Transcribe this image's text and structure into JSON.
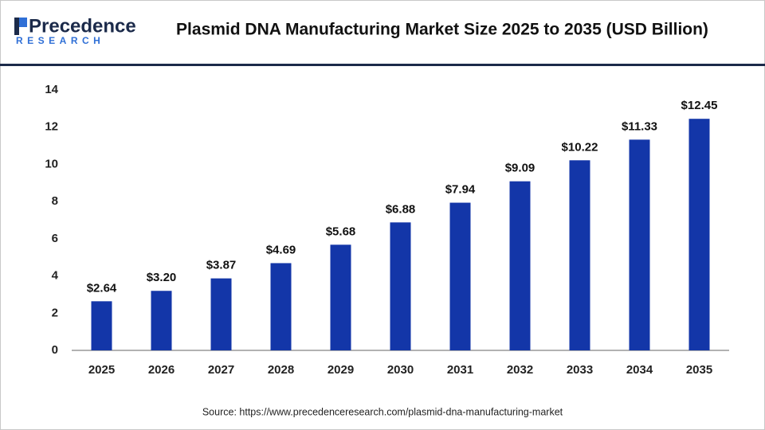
{
  "header": {
    "logo_name": "Precedence",
    "logo_sub": "RESEARCH"
  },
  "chart_data": {
    "type": "bar",
    "title": "Plasmid DNA Manufacturing Market Size 2025 to 2035 (USD Billion)",
    "categories": [
      "2025",
      "2026",
      "2027",
      "2028",
      "2029",
      "2030",
      "2031",
      "2032",
      "2033",
      "2034",
      "2035"
    ],
    "values": [
      2.64,
      3.2,
      3.87,
      4.69,
      5.68,
      6.88,
      7.94,
      9.09,
      10.22,
      11.33,
      12.45
    ],
    "value_labels": [
      "$2.64",
      "$3.20",
      "$3.87",
      "$4.69",
      "$5.68",
      "$6.88",
      "$7.94",
      "$9.09",
      "$10.22",
      "$11.33",
      "$12.45"
    ],
    "color": "#1336a8",
    "ylim": [
      0,
      14
    ],
    "yticks": [
      0,
      2,
      4,
      6,
      8,
      10,
      12,
      14
    ],
    "grid": false,
    "source": "Source: https://www.precedenceresearch.com/plasmid-dna-manufacturing-market"
  }
}
